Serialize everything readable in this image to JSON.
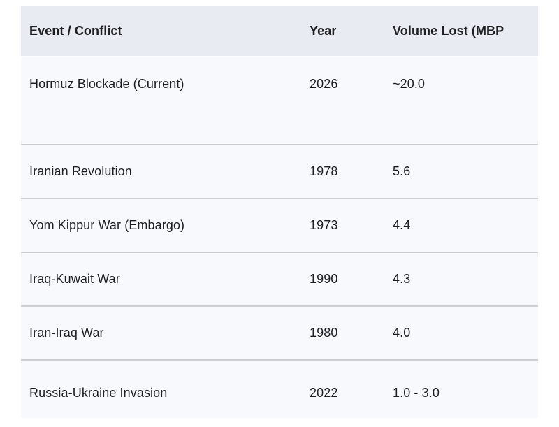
{
  "table": {
    "columns": [
      {
        "label": "Event / Conflict"
      },
      {
        "label": "Year"
      },
      {
        "label": "Volume Lost (MBP"
      }
    ],
    "rows": [
      {
        "event": "Hormuz Blockade (Current)",
        "year": "2026",
        "volume": "~20.0"
      },
      {
        "event": "Iranian Revolution",
        "year": "1978",
        "volume": "5.6"
      },
      {
        "event": "Yom Kippur War (Embargo)",
        "year": "1973",
        "volume": "4.4"
      },
      {
        "event": "Iraq-Kuwait War",
        "year": "1990",
        "volume": "4.3"
      },
      {
        "event": "Iran-Iraq War",
        "year": "1980",
        "volume": "4.0"
      },
      {
        "event": "Russia-Ukraine Invasion",
        "year": "2022",
        "volume": "1.0 - 3.0"
      }
    ]
  },
  "colors": {
    "header_bg": "#e8ecf2",
    "row_bg": "#f7f9fc",
    "divider": "#ccd0d5",
    "text": "#202124",
    "page_bg": "#ffffff"
  }
}
